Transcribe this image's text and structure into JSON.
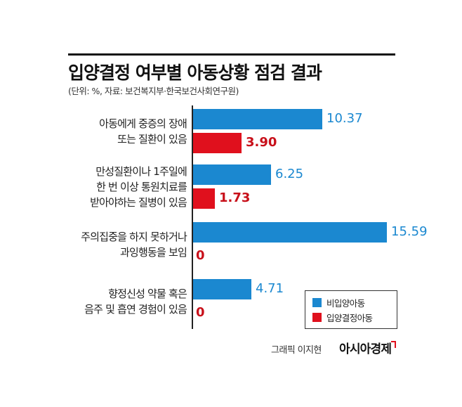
{
  "header": {
    "title": "입양결정 여부별 아동상황 점검 결과",
    "subtitle": "(단위: %, 자료: 보건복지부·한국보건사회연구원)"
  },
  "chart_data": {
    "type": "bar",
    "orientation": "horizontal",
    "title": "입양결정 여부별 아동상황 점검 결과",
    "categories": [
      [
        "아동에게 중증의 장애",
        "또는 질환이 있음"
      ],
      [
        "만성질환이나 1주일에",
        "한 번 이상 통원치료를",
        "받아야하는 질병이 있음"
      ],
      [
        "주의집중을 하지 못하거나",
        "과잉행동을 보임"
      ],
      [
        "향정신성 약물 혹은",
        "음주 및 흡연 경험이 있음"
      ]
    ],
    "series": [
      {
        "name": "비입양아동",
        "color": "#1b88d0",
        "values": [
          10.37,
          6.25,
          15.59,
          4.71
        ],
        "labels": [
          "10.37",
          "6.25",
          "15.59",
          "4.71"
        ]
      },
      {
        "name": "입양결정아동",
        "color": "#e0101d",
        "values": [
          3.9,
          1.73,
          0,
          0
        ],
        "labels": [
          "3.90",
          "1.73",
          "0",
          "0"
        ]
      }
    ],
    "legend_position": "bottom-right",
    "grid": false
  },
  "footer": {
    "credit": "그래픽 이지현",
    "brand": "아시아경제"
  }
}
